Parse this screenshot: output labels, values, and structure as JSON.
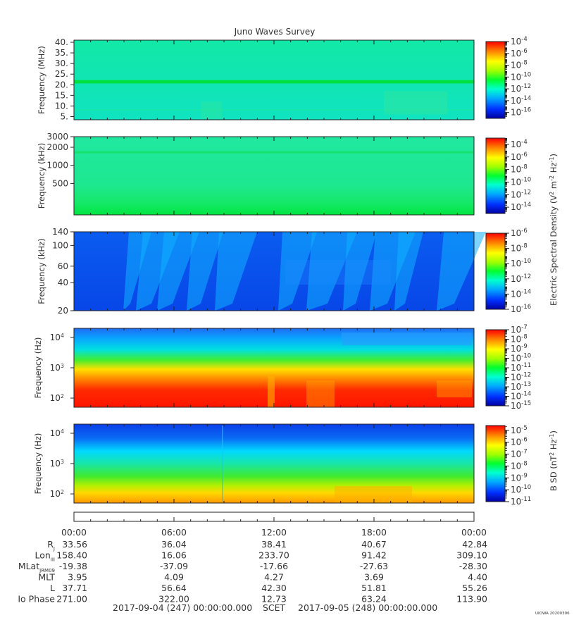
{
  "title": "Juno Waves Survey",
  "cbar_unit_e": "Electric Spectral Density (V",
  "cbar_unit_e_parts": [
    "Electric Spectral Density (V",
    "2",
    " m",
    "-2",
    " Hz",
    "-1",
    ")"
  ],
  "cbar_unit_b_parts": [
    "B SD (nT",
    "2",
    " Hz",
    "-1",
    ")"
  ],
  "credit": "UIOWA 20200306",
  "time_labels": [
    "00:00",
    "06:00",
    "12:00",
    "18:00",
    "00:00"
  ],
  "ephemeris": [
    {
      "label": "R",
      "sub": "J",
      "values": [
        "33.56",
        "36.04",
        "38.41",
        "40.67",
        "42.84"
      ]
    },
    {
      "label": "Lon",
      "sub": "III",
      "values": [
        "158.40",
        "16.06",
        "233.70",
        "91.42",
        "309.10"
      ]
    },
    {
      "label": "MLat",
      "sub": "JRM09",
      "values": [
        "-19.38",
        "-37.09",
        "-17.66",
        "-27.63",
        "-28.30"
      ]
    },
    {
      "label": "MLT",
      "sub": "",
      "values": [
        "3.95",
        "4.09",
        "4.27",
        "3.69",
        "4.40"
      ]
    },
    {
      "label": "L",
      "sub": "",
      "values": [
        "37.71",
        "56.64",
        "42.30",
        "51.81",
        "55.26"
      ]
    },
    {
      "label": "Io Phase",
      "sub": "",
      "values": [
        "271.00",
        "322.00",
        "12.73",
        "63.24",
        "113.90"
      ]
    }
  ],
  "footer": {
    "start": "2017-09-04 (247) 00:00:00.000",
    "scet": "SCET",
    "end": "2017-09-05 (248) 00:00:00.000"
  },
  "chart_data": [
    {
      "type": "heatmap",
      "ylabel": "Frequency (MHz)",
      "yscale": "linear",
      "ylim": [
        3.5,
        41
      ],
      "yticks": [
        5,
        10,
        15,
        20,
        25,
        30,
        35,
        40
      ],
      "ytick_labels": [
        "5.",
        "10.",
        "15.",
        "20.",
        "25.",
        "30.",
        "35.",
        "40."
      ],
      "colorbar": {
        "scale": "log",
        "range_exp": [
          -17,
          -4
        ],
        "tick_exps": [
          -4,
          -6,
          -8,
          -10,
          -12,
          -14,
          -16
        ]
      }
    },
    {
      "type": "heatmap",
      "ylabel": "Frequency (kHz)",
      "yscale": "log",
      "ylim": [
        150,
        3000
      ],
      "yticks": [
        500,
        1000,
        2000,
        3000
      ],
      "ytick_labels": [
        "500",
        "1000",
        "2000",
        "3000"
      ],
      "colorbar": {
        "scale": "log",
        "range_exp": [
          -15,
          -3
        ],
        "tick_exps": [
          -4,
          -6,
          -8,
          -10,
          -12,
          -14
        ]
      }
    },
    {
      "type": "heatmap",
      "ylabel": "Frequency (kHz)",
      "yscale": "log",
      "ylim": [
        20,
        140
      ],
      "yticks": [
        20,
        40,
        60,
        100,
        140
      ],
      "ytick_labels": [
        "20",
        "40",
        "60",
        "100",
        "140"
      ],
      "colorbar": {
        "scale": "log",
        "range_exp": [
          -16,
          -6
        ],
        "tick_exps": [
          -6,
          -8,
          -10,
          -12,
          -14,
          -16
        ]
      }
    },
    {
      "type": "heatmap",
      "ylabel": "Frequency (Hz)",
      "yscale": "log",
      "ylim": [
        50,
        20000
      ],
      "yticks": [
        100,
        1000,
        10000
      ],
      "ytick_labels": [
        "10",
        "10",
        "10"
      ],
      "ytick_exps": [
        "2",
        "3",
        "4"
      ],
      "colorbar": {
        "scale": "log",
        "range_exp": [
          -15,
          -7
        ],
        "tick_exps": [
          -7,
          -8,
          -9,
          -10,
          -11,
          -12,
          -13,
          -14,
          -15
        ]
      }
    },
    {
      "type": "heatmap",
      "ylabel": "Frequency (Hz)",
      "yscale": "log",
      "ylim": [
        50,
        20000
      ],
      "yticks": [
        100,
        1000,
        10000
      ],
      "ytick_labels": [
        "10",
        "10",
        "10"
      ],
      "ytick_exps": [
        "2",
        "3",
        "4"
      ],
      "colorbar": {
        "scale": "log",
        "range_exp": [
          -11,
          -4.6
        ],
        "tick_exps": [
          -5,
          -6,
          -7,
          -8,
          -9,
          -10,
          -11
        ]
      }
    }
  ]
}
